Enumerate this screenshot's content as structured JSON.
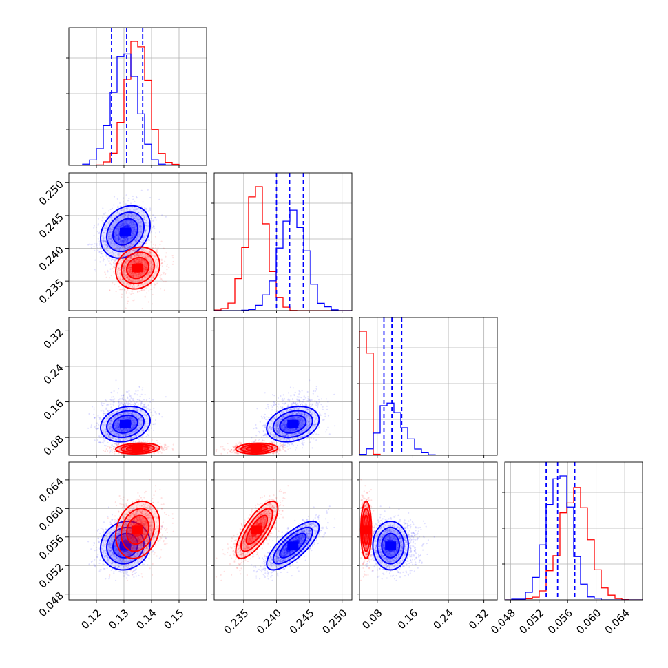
{
  "chart_data": {
    "type": "corner",
    "parameters": 4,
    "colors": {
      "series_a": "#0000ff",
      "series_b": "#ff0000"
    },
    "grid": true,
    "quantile_lines": {
      "style": "dashed",
      "color": "#0000ff"
    },
    "axes": [
      {
        "range": [
          0.11,
          0.16
        ],
        "ticks": [
          0.12,
          0.13,
          0.14,
          0.15
        ],
        "tick_labels": [
          "0.12",
          "0.13",
          "0.14",
          "0.15"
        ]
      },
      {
        "range": [
          0.2305,
          0.2515
        ],
        "ticks": [
          0.235,
          0.24,
          0.245,
          0.25
        ],
        "tick_labels": [
          "0.235",
          "0.240",
          "0.245",
          "0.250"
        ]
      },
      {
        "range": [
          0.04,
          0.35
        ],
        "ticks": [
          0.08,
          0.16,
          0.24,
          0.32
        ],
        "tick_labels": [
          "0.08",
          "0.16",
          "0.24",
          "0.32"
        ]
      },
      {
        "range": [
          0.0472,
          0.0665
        ],
        "ticks": [
          0.048,
          0.052,
          0.056,
          0.06,
          0.064
        ],
        "tick_labels": [
          "0.048",
          "0.052",
          "0.056",
          "0.060",
          "0.064"
        ]
      }
    ],
    "series": [
      {
        "mean": [
          0.1305,
          0.2425,
          0.11,
          0.0548
        ],
        "sd": [
          0.0045,
          0.002,
          0.02,
          0.0017
        ],
        "rho": [
          [
            1,
            0.25,
            0.2,
            0.1
          ],
          [
            0.25,
            1,
            0.25,
            0.75
          ],
          [
            0.2,
            0.25,
            1,
            0.0
          ],
          [
            0.1,
            0.75,
            0.0,
            1
          ]
        ]
      },
      {
        "mean": [
          0.135,
          0.237,
          0.055,
          0.057
        ],
        "sd": [
          0.004,
          0.0016,
          0.006,
          0.002
        ],
        "rho": [
          [
            1,
            0.15,
            0.15,
            0.2
          ],
          [
            0.15,
            1,
            0.1,
            0.75
          ],
          [
            0.15,
            0.1,
            1,
            0.0
          ],
          [
            0.2,
            0.75,
            0.0,
            1
          ]
        ]
      }
    ],
    "quantiles": [
      [
        0.1255,
        0.131,
        0.1368
      ],
      [
        0.24,
        0.242,
        0.2441
      ],
      [
        0.095,
        0.113,
        0.135
      ],
      [
        0.053,
        0.0546,
        0.057
      ]
    ]
  }
}
